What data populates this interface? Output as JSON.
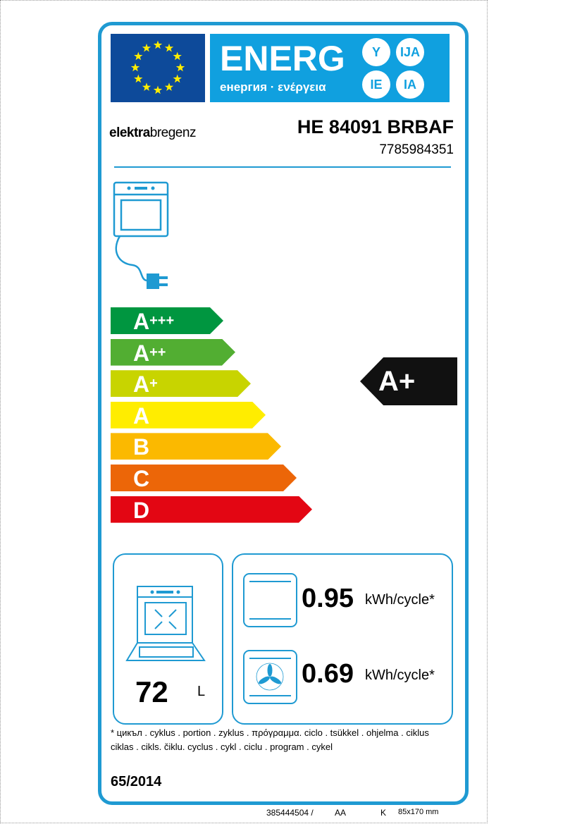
{
  "header": {
    "energ": "ENERG",
    "energ_sub": "енергия · ενέργεια",
    "lang_circles": [
      "Y",
      "IJA",
      "IE",
      "IA"
    ]
  },
  "brand": {
    "part1": "elektra",
    "part2": "bregenz"
  },
  "model": "HE 84091 BRBAF",
  "product_code": "7785984351",
  "scale": [
    {
      "label": "A",
      "plus": "+++",
      "color": "#009640"
    },
    {
      "label": "A",
      "plus": "++",
      "color": "#52ae32"
    },
    {
      "label": "A",
      "plus": "+",
      "color": "#c8d400"
    },
    {
      "label": "A",
      "plus": "",
      "color": "#ffed00"
    },
    {
      "label": "B",
      "plus": "",
      "color": "#fbb900"
    },
    {
      "label": "C",
      "plus": "",
      "color": "#ec6608"
    },
    {
      "label": "D",
      "plus": "",
      "color": "#e30613"
    }
  ],
  "rating": "A+",
  "volume": {
    "value": "72",
    "unit": "L"
  },
  "consumption": [
    {
      "icon": "conventional-oven-icon",
      "value": "0.95",
      "unit": "kWh/cycle*"
    },
    {
      "icon": "fan-oven-icon",
      "value": "0.69",
      "unit": "kWh/cycle*"
    }
  ],
  "footnote_line1": "* цикъл . cyklus . portion . zyklus . πρόγραμμα. ciclo . tsükkel . ohjelma . ciklus",
  "footnote_line2": "ciklas . cikls. čiklu. cyclus . cykl . ciclu . program . cykel",
  "regulation": "65/2014",
  "print_info": {
    "number": "385444504 /",
    "code1": "AA",
    "code2": "K",
    "size": "85x170 mm"
  },
  "colors": {
    "frame": "#1f9ad2",
    "energ_bg": "#10a0df",
    "flag": "#0d4a9a"
  }
}
